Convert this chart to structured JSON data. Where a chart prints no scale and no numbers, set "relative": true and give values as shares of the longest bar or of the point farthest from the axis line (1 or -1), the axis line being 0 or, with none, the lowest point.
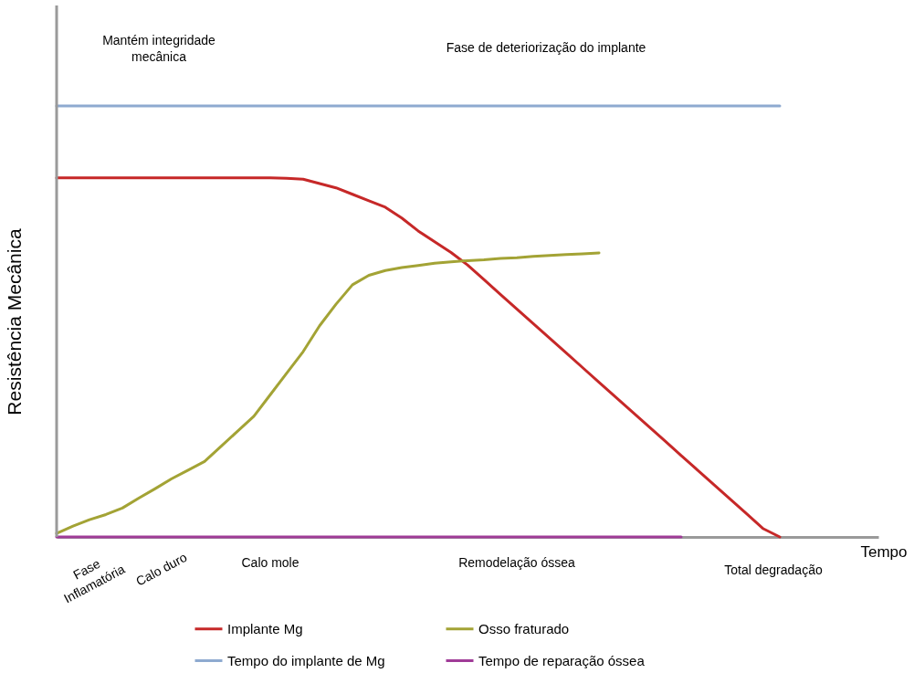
{
  "chart_data": {
    "type": "line",
    "relative": true,
    "xlabel": "Tempo",
    "ylabel": "Resistência Mecânica",
    "categories": [
      null,
      null,
      null,
      null,
      null,
      null,
      null,
      null,
      null,
      null,
      null,
      null,
      null,
      null,
      null,
      null,
      null,
      null,
      null,
      null,
      null,
      null,
      null,
      null,
      null,
      null,
      null,
      null,
      null,
      null,
      null,
      null,
      null,
      null,
      null,
      null,
      null,
      null,
      null,
      null,
      null,
      null,
      null,
      null,
      null
    ],
    "legend": "bottom",
    "line_style": "solid",
    "series": [
      {
        "name": "Implante Mg",
        "color": "#c62828",
        "values": [
          0.833,
          0.833,
          0.833,
          0.833,
          0.833,
          0.833,
          0.833,
          0.833,
          0.833,
          0.833,
          0.833,
          0.833,
          0.833,
          0.833,
          0.832,
          0.83,
          0.82,
          0.81,
          0.795,
          0.78,
          0.765,
          0.74,
          0.71,
          0.685,
          0.66,
          0.631,
          0.597,
          0.563,
          0.529,
          0.495,
          0.461,
          0.427,
          0.393,
          0.359,
          0.325,
          0.291,
          0.257,
          0.223,
          0.189,
          0.155,
          0.121,
          0.087,
          0.053,
          0.019,
          0
        ]
      },
      {
        "name": "Osso fraturado",
        "color": "#a3a335",
        "values": [
          0.008,
          0.025,
          0.04,
          0.052,
          0.067,
          0.09,
          0.112,
          0.135,
          0.155,
          0.175,
          0.21,
          0.245,
          0.28,
          0.33,
          0.38,
          0.43,
          0.49,
          0.54,
          0.585,
          0.607,
          0.618,
          0.625,
          0.63,
          0.635,
          0.638,
          0.641,
          0.643,
          0.646,
          0.648,
          0.651,
          0.653,
          0.655,
          0.657,
          0.659,
          null,
          null,
          null,
          null,
          null,
          null,
          null,
          null,
          null,
          null,
          null
        ]
      },
      {
        "name": "Tempo do implante de Mg",
        "color": "#8eaad0",
        "values": [
          1,
          1,
          1,
          1,
          1,
          1,
          1,
          1,
          1,
          1,
          1,
          1,
          1,
          1,
          1,
          1,
          1,
          1,
          1,
          1,
          1,
          1,
          1,
          1,
          1,
          1,
          1,
          1,
          1,
          1,
          1,
          1,
          1,
          1,
          1,
          1,
          1,
          1,
          1,
          1,
          1,
          1,
          1,
          1,
          1
        ]
      },
      {
        "name": "Tempo de reparação óssea",
        "color": "#a03c98",
        "values": [
          0,
          0,
          0,
          0,
          0,
          0,
          0,
          0,
          0,
          0,
          0,
          0,
          0,
          0,
          0,
          0,
          0,
          0,
          0,
          0,
          0,
          0,
          0,
          0,
          0,
          0,
          0,
          0,
          0,
          0,
          0,
          0,
          0,
          0,
          0,
          0,
          0,
          0,
          0,
          null,
          null,
          null,
          null,
          null,
          null
        ]
      }
    ],
    "annotations": [
      "Mantém integridade mecânica",
      "Fase de deteriorização do implante",
      "Fase Inflamatória",
      "Calo duro",
      "Calo mole",
      "Remodelação óssea",
      "Total degradação"
    ]
  }
}
